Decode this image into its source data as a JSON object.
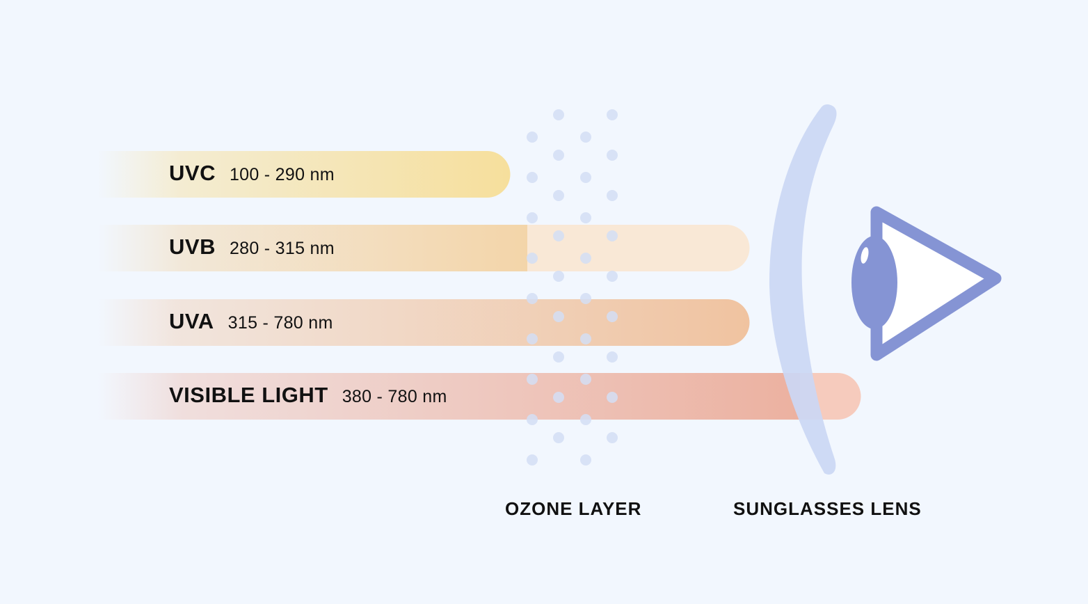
{
  "bands": [
    {
      "name": "UVC",
      "range": "100 - 290 nm"
    },
    {
      "name": "UVB",
      "range": "280 - 315 nm"
    },
    {
      "name": "UVA",
      "range": "315 - 780 nm"
    },
    {
      "name": "VISIBLE LIGHT",
      "range": "380 - 780 nm"
    }
  ],
  "captions": {
    "ozone": "OZONE LAYER",
    "lens": "SUNGLASSES LENS"
  },
  "colors": {
    "background": "#f2f7fe",
    "uvc": "#f6df9c",
    "uvb": "#f3d5a9",
    "uvb_filtered": "#f9e8d6",
    "uva": "#f0c3a0",
    "visible": "#ecb1a0",
    "visible_filtered": "#f6cbbd",
    "ozone_dots": "#dbe3f6",
    "lens": "#cbd7f4",
    "eye": "#8594d4"
  }
}
